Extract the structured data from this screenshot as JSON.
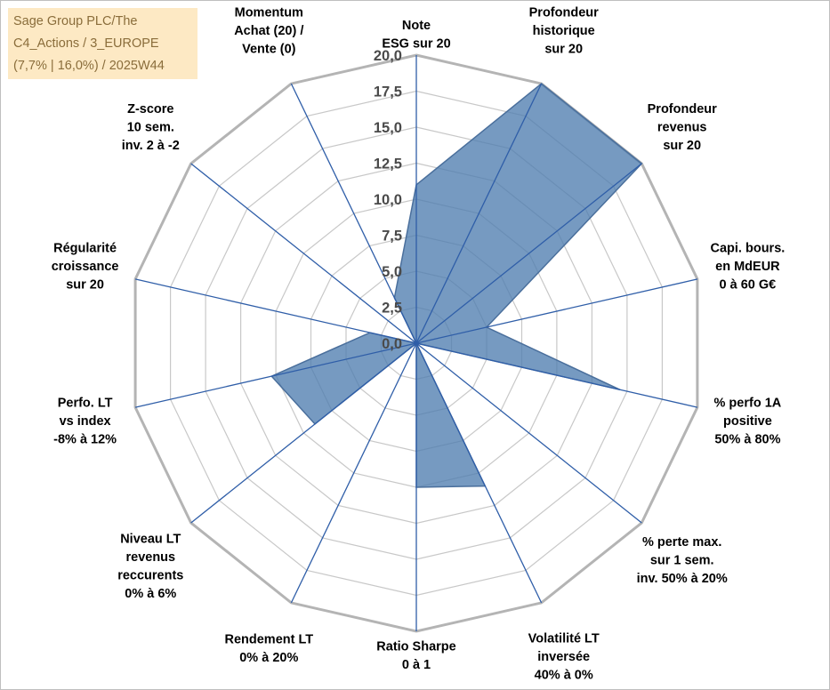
{
  "title_lines": [
    "Sage Group PLC/The",
    "C4_Actions / 3_EUROPE",
    "(7,7% | 16,0%) / 2025W44"
  ],
  "colors": {
    "fill": "#4f7db0",
    "stroke": "#4a6f9c",
    "grid": "#c8c8c8",
    "spoke": "#2f5ea8",
    "text": "#000000",
    "title_bg": "#fde9c4",
    "title_text": "#8a6d3b"
  },
  "chart_data": {
    "type": "radar",
    "rmin": 0,
    "rmax": 20,
    "tick_step": 2.5,
    "tick_labels": [
      "0,0",
      "2,5",
      "5,0",
      "7,5",
      "10,0",
      "12,5",
      "15,0",
      "17,5",
      "20,0"
    ],
    "axes": [
      {
        "label": [
          "Note",
          "ESG sur 20"
        ],
        "value": 11
      },
      {
        "label": [
          "Profondeur",
          "historique",
          "sur 20"
        ],
        "value": 20
      },
      {
        "label": [
          "Profondeur",
          "revenus",
          "sur 20"
        ],
        "value": 20
      },
      {
        "label": [
          "Capi. bours.",
          "en MdEUR",
          "0 à 60 G€"
        ],
        "value": 5
      },
      {
        "label": [
          "% perfo 1A",
          "positive",
          "50% à 80%"
        ],
        "value": 14.5
      },
      {
        "label": [
          "% perte max.",
          "sur 1 sem.",
          "inv. 50% à 20%"
        ],
        "value": 0
      },
      {
        "label": [
          "Volatilité LT",
          "inversée",
          "40% à 0%"
        ],
        "value": 11
      },
      {
        "label": [
          "Ratio Sharpe",
          "0 à 1"
        ],
        "value": 10
      },
      {
        "label": [
          "Rendement LT",
          "0% à 20%"
        ],
        "value": 0
      },
      {
        "label": [
          "Niveau LT",
          "revenus",
          "reccurents",
          "0% à 6%"
        ],
        "value": 9
      },
      {
        "label": [
          "Perfo. LT",
          "vs index",
          "-8% à 12%"
        ],
        "value": 10.3
      },
      {
        "label": [
          "Régularité",
          "croissance",
          "sur 20"
        ],
        "value": 3.3
      },
      {
        "label": [
          "Z-score",
          "10 sem.",
          "inv. 2 à -2"
        ],
        "value": 0
      },
      {
        "label": [
          "Momentum",
          "Achat (20) /",
          "Vente (0)"
        ],
        "value": 3.5
      }
    ]
  }
}
